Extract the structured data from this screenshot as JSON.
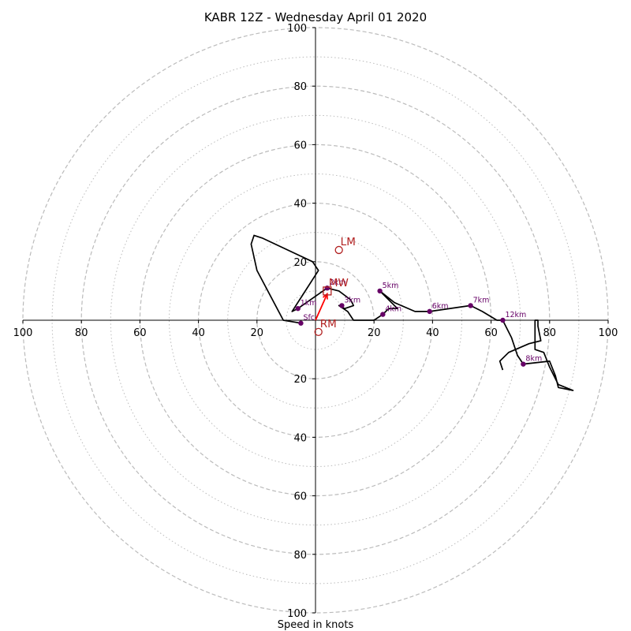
{
  "chart_data": {
    "type": "scatter",
    "title": "KABR 12Z - Wednesday April 01 2020",
    "xlabel": "Speed in knots",
    "ylabel": "",
    "xlim": [
      -100,
      100
    ],
    "ylim": [
      -100,
      100
    ],
    "rings": {
      "major": [
        20,
        40,
        60,
        80,
        100
      ],
      "minor": [
        10,
        30,
        50,
        70,
        90
      ],
      "style_major": "dashed",
      "style_minor": "dotted"
    },
    "x_ticks": [
      "100",
      "80",
      "60",
      "40",
      "20",
      "20",
      "40",
      "60",
      "80",
      "100"
    ],
    "y_ticks": [
      "100",
      "80",
      "60",
      "40",
      "20",
      "20",
      "40",
      "60",
      "80",
      "100"
    ],
    "series": [
      {
        "values": [
          [
            -5,
            -1
          ],
          [
            -11,
            0
          ],
          [
            -20,
            17
          ],
          [
            -22,
            26
          ],
          [
            -21,
            29
          ],
          [
            -18,
            28
          ],
          [
            -1,
            20
          ],
          [
            1,
            17
          ],
          [
            -8,
            3
          ],
          [
            -6,
            4
          ],
          [
            4,
            11
          ],
          [
            8,
            10
          ],
          [
            12,
            7
          ],
          [
            13,
            5
          ],
          [
            10,
            4
          ],
          [
            8,
            5
          ],
          [
            11,
            3
          ],
          [
            13,
            0
          ],
          [
            20,
            0
          ],
          [
            23,
            2
          ],
          [
            25,
            4
          ],
          [
            28,
            4
          ],
          [
            22,
            10
          ],
          [
            27,
            6
          ],
          [
            34,
            3
          ],
          [
            39,
            3
          ],
          [
            53,
            5
          ],
          [
            57,
            3
          ],
          [
            62,
            0
          ],
          [
            64,
            0
          ],
          [
            67,
            -6
          ],
          [
            69,
            -12
          ],
          [
            71,
            -15
          ],
          [
            80,
            -14
          ],
          [
            82,
            -19
          ],
          [
            83,
            -23
          ],
          [
            88,
            -24
          ],
          [
            83,
            -22
          ],
          [
            80,
            -16
          ],
          [
            78,
            -11
          ],
          [
            75,
            -10
          ],
          [
            75,
            0
          ],
          [
            76,
            0
          ],
          [
            76,
            -2
          ],
          [
            77,
            -7
          ],
          [
            73,
            -8
          ],
          [
            66,
            -11
          ],
          [
            63,
            -14
          ],
          [
            64,
            -17
          ]
        ]
      }
    ],
    "height_markers": [
      {
        "label": "Sfc",
        "x": -5,
        "y": -1
      },
      {
        "label": "1km",
        "x": -6,
        "y": 4
      },
      {
        "label": "2km",
        "x": 4,
        "y": 11
      },
      {
        "label": "3km",
        "x": 9,
        "y": 5
      },
      {
        "label": "4km",
        "x": 23,
        "y": 2
      },
      {
        "label": "5km",
        "x": 22,
        "y": 10
      },
      {
        "label": "6km",
        "x": 39,
        "y": 3
      },
      {
        "label": "7km",
        "x": 53,
        "y": 5
      },
      {
        "label": "8km",
        "x": 71,
        "y": -15
      },
      {
        "label": "12km",
        "x": 64,
        "y": 0
      }
    ],
    "storm_motion": [
      {
        "label": "LM",
        "x": 8,
        "y": 24,
        "marker": "circle"
      },
      {
        "label": "RM",
        "x": 1,
        "y": -4,
        "marker": "circle"
      },
      {
        "label": "MW",
        "x": 4,
        "y": 10,
        "marker": "square"
      }
    ],
    "shear_vector": {
      "from": [
        0,
        0
      ],
      "to": [
        4,
        9
      ]
    },
    "grid": true,
    "colors": {
      "hodograph": "#000000",
      "markers": "#660066",
      "storm_motion": "#b22222",
      "shear_vector": "#ff0000",
      "rings": "#bbbbbb"
    }
  }
}
